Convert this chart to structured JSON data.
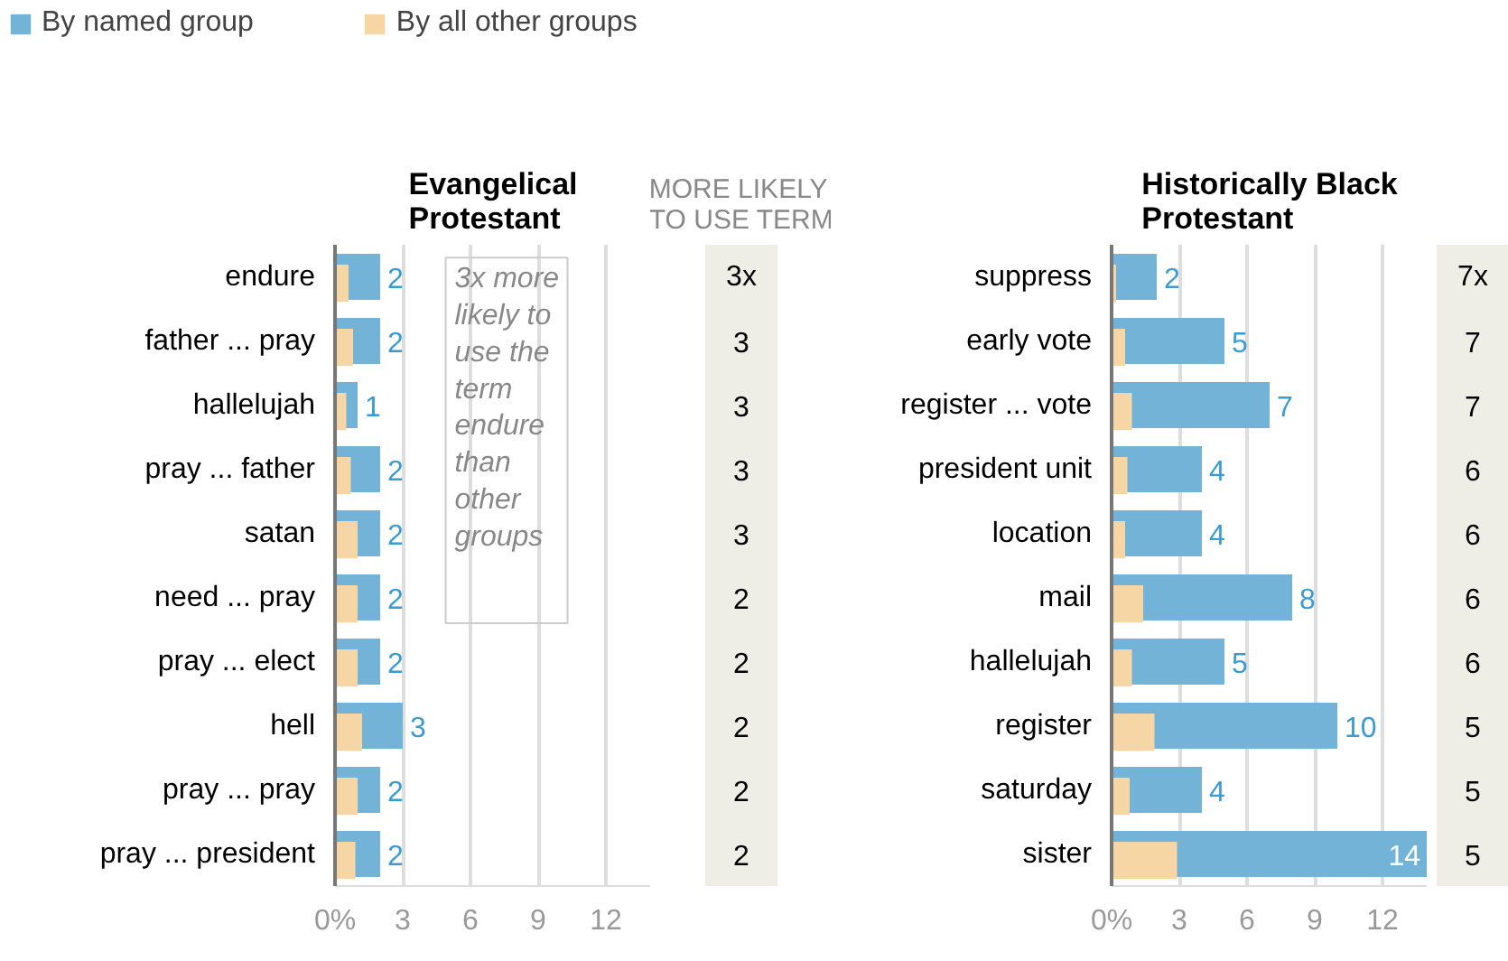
{
  "chart_data": [
    {
      "type": "bar",
      "orientation": "horizontal",
      "title": "Evangelical Protestant",
      "categories": [
        "endure",
        "father ... pray",
        "hallelujah",
        "pray ... father",
        "satan",
        "need ... pray",
        "pray ... elect",
        "hell",
        "pray ... pray",
        "pray ... president"
      ],
      "series": [
        {
          "name": "By named group",
          "color": "#74b3d8",
          "values": [
            2,
            2,
            1,
            2,
            2,
            2,
            2,
            3,
            2,
            2
          ],
          "value_labels": [
            "2",
            "2",
            "1",
            "2",
            "2",
            "2",
            "2",
            "3",
            "2",
            "2"
          ]
        },
        {
          "name": "By all other groups",
          "color": "#f7d6a5",
          "values": [
            0.6,
            0.8,
            0.5,
            0.7,
            1.0,
            1.0,
            1.0,
            1.2,
            1.0,
            0.9
          ]
        }
      ],
      "xlim": [
        0,
        14
      ],
      "xticks": [
        {
          "value": 0,
          "label": "0%"
        },
        3,
        6,
        9,
        12
      ],
      "grid": "x",
      "legend": "top left",
      "annotations": [
        "MORE LIKELY TO USE TERM",
        "3x more likely to use the term endure than other groups",
        "3x",
        "3",
        "3",
        "3",
        "3",
        "2",
        "2",
        "2",
        "2",
        "2"
      ]
    },
    {
      "type": "bar",
      "orientation": "horizontal",
      "title": "Historically Black Protestant",
      "categories": [
        "suppress",
        "early vote",
        "register ... vote",
        "president unit",
        "location",
        "mail",
        "hallelujah",
        "register",
        "saturday",
        "sister"
      ],
      "series": [
        {
          "color": "#74b3d8",
          "values": [
            2,
            5,
            7,
            4,
            4,
            8,
            5,
            10,
            4,
            14
          ],
          "value_labels": [
            "2",
            "5",
            "7",
            "4",
            "4",
            "8",
            "5",
            "10",
            "4",
            "14"
          ]
        },
        {
          "color": "#f7d6a5",
          "values": [
            0.2,
            0.6,
            0.9,
            0.7,
            0.6,
            1.4,
            0.9,
            1.9,
            0.8,
            2.9
          ]
        }
      ],
      "xlim": [
        0,
        14
      ],
      "xticks": [
        {
          "value": 0,
          "label": "0%"
        },
        3,
        6,
        9,
        12
      ],
      "grid": "x",
      "annotations": [
        "7x",
        "7",
        "7",
        "6",
        "6",
        "6",
        "6",
        "5",
        "5",
        "5"
      ]
    }
  ]
}
